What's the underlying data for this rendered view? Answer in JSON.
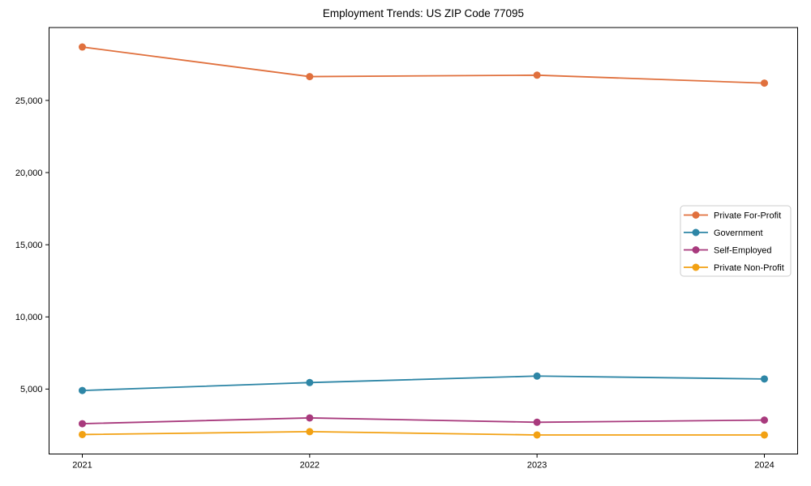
{
  "chart_data": {
    "type": "line",
    "title": "Employment Trends: US ZIP Code 77095",
    "xlabel": "",
    "ylabel": "",
    "categories": [
      "2021",
      "2022",
      "2023",
      "2024"
    ],
    "series": [
      {
        "name": "Private For-Profit",
        "color": "#e0703d",
        "values": [
          28700,
          26650,
          26750,
          26200
        ]
      },
      {
        "name": "Government",
        "color": "#2e86a6",
        "values": [
          4900,
          5450,
          5900,
          5700
        ]
      },
      {
        "name": "Self-Employed",
        "color": "#a83a7d",
        "values": [
          2600,
          3000,
          2700,
          2850
        ]
      },
      {
        "name": "Private Non-Profit",
        "color": "#f2a113",
        "values": [
          1850,
          2050,
          1820,
          1820
        ]
      }
    ],
    "ylim": [
      500,
      30050
    ],
    "yticks": [
      {
        "value": 5000,
        "label": "5,000"
      },
      {
        "value": 10000,
        "label": "10,000"
      },
      {
        "value": 15000,
        "label": "15,000"
      },
      {
        "value": 20000,
        "label": "20,000"
      },
      {
        "value": 25000,
        "label": "25,000"
      }
    ],
    "grid": false,
    "marker": "circle",
    "legend_position": "right-center",
    "axis_color": "#000000",
    "background_color": "#ffffff",
    "legend_border_color": "#cccccc",
    "legend_box": {
      "x": 839,
      "y": 254,
      "width": 136,
      "height": 87
    }
  }
}
